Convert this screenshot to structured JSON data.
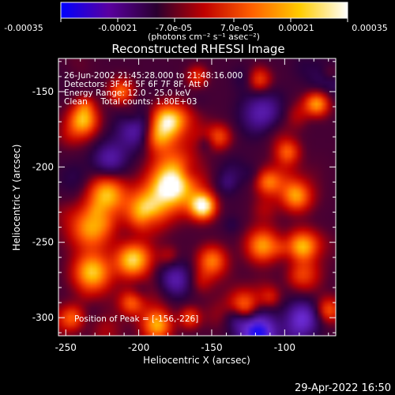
{
  "chart_data": {
    "type": "heatmap",
    "title": "Reconstructed RHESSI Image",
    "xlabel": "Heliocentric X (arcsec)",
    "ylabel": "Heliocentric Y (arcsec)",
    "xlim": [
      -255,
      -65
    ],
    "ylim": [
      -312,
      -128
    ],
    "x_ticks": [
      -250,
      -200,
      -150,
      -100
    ],
    "y_ticks": [
      -150,
      -200,
      -250,
      -300
    ],
    "colorbar": {
      "range": [
        -0.00035,
        0.00035
      ],
      "tick_labels": [
        "-0.00035",
        "-0.00021",
        "-7.0e-05",
        "7.0e-05",
        "0.00021",
        "0.00035"
      ],
      "label": "(photons cm⁻² s⁻¹ asec⁻²)",
      "colors": [
        "#0000ff",
        "#5a00a0",
        "#2a0030",
        "#c00000",
        "#ff6000",
        "#ffcc00",
        "#ffffff"
      ]
    },
    "annotations": [
      "26-Jun-2002 21:45:28.000 to 21:48:16.000",
      "Detectors: 3F 4F 5F 6F 7F 8F, Att 0",
      "Energy Range: 12.0 - 25.0 keV",
      "Clean     Total counts: 1.80E+03"
    ],
    "peak_label": "Position of Peak = [-156,-226]",
    "peak": [
      -156,
      -226
    ],
    "sources": [
      {
        "x": -156,
        "y": -226,
        "amp": 1.0,
        "sigma": 6
      },
      {
        "x": -175,
        "y": -212,
        "amp": 0.85,
        "sigma": 12
      },
      {
        "x": -195,
        "y": -228,
        "amp": 0.7,
        "sigma": 10
      },
      {
        "x": -180,
        "y": -168,
        "amp": 0.85,
        "sigma": 8
      },
      {
        "x": -188,
        "y": -180,
        "amp": 0.6,
        "sigma": 7
      },
      {
        "x": -222,
        "y": -218,
        "amp": 0.75,
        "sigma": 9
      },
      {
        "x": -232,
        "y": -240,
        "amp": 0.7,
        "sigma": 10
      },
      {
        "x": -232,
        "y": -270,
        "amp": 0.8,
        "sigma": 9
      },
      {
        "x": -205,
        "y": -262,
        "amp": 0.75,
        "sigma": 8
      },
      {
        "x": -188,
        "y": -305,
        "amp": 0.8,
        "sigma": 7
      },
      {
        "x": -238,
        "y": -168,
        "amp": 0.65,
        "sigma": 7
      },
      {
        "x": -115,
        "y": -252,
        "amp": 0.65,
        "sigma": 8
      },
      {
        "x": -88,
        "y": -252,
        "amp": 0.8,
        "sigma": 7
      },
      {
        "x": -92,
        "y": -220,
        "amp": 0.55,
        "sigma": 7
      },
      {
        "x": -78,
        "y": -158,
        "amp": 0.7,
        "sigma": 6
      },
      {
        "x": -98,
        "y": -190,
        "amp": 0.5,
        "sigma": 6
      },
      {
        "x": -128,
        "y": -292,
        "amp": 0.55,
        "sigma": 7
      },
      {
        "x": -112,
        "y": -210,
        "amp": 0.45,
        "sigma": 6
      },
      {
        "x": -150,
        "y": -262,
        "amp": 0.55,
        "sigma": 7
      },
      {
        "x": -145,
        "y": -180,
        "amp": 0.45,
        "sigma": 6
      },
      {
        "x": -118,
        "y": -142,
        "amp": 0.5,
        "sigma": 6
      },
      {
        "x": -212,
        "y": -150,
        "amp": 0.55,
        "sigma": 6
      },
      {
        "x": -160,
        "y": -140,
        "amp": 0.4,
        "sigma": 5
      },
      {
        "x": -245,
        "y": -300,
        "amp": 0.45,
        "sigma": 6
      },
      {
        "x": -70,
        "y": -295,
        "amp": 0.5,
        "sigma": 6
      },
      {
        "x": -205,
        "y": -290,
        "amp": 0.5,
        "sigma": 6
      },
      {
        "x": -165,
        "y": -300,
        "amp": 0.45,
        "sigma": 5
      }
    ],
    "negatives": [
      {
        "x": -118,
        "y": -310,
        "amp": 0.9,
        "sigma": 9
      },
      {
        "x": -88,
        "y": -300,
        "amp": 0.6,
        "sigma": 8
      },
      {
        "x": -175,
        "y": -275,
        "amp": 0.5,
        "sigma": 8
      },
      {
        "x": -115,
        "y": -165,
        "amp": 0.5,
        "sigma": 10
      },
      {
        "x": -220,
        "y": -195,
        "amp": 0.45,
        "sigma": 8
      }
    ]
  },
  "footer": {
    "timestamp": "29-Apr-2022 16:50"
  }
}
